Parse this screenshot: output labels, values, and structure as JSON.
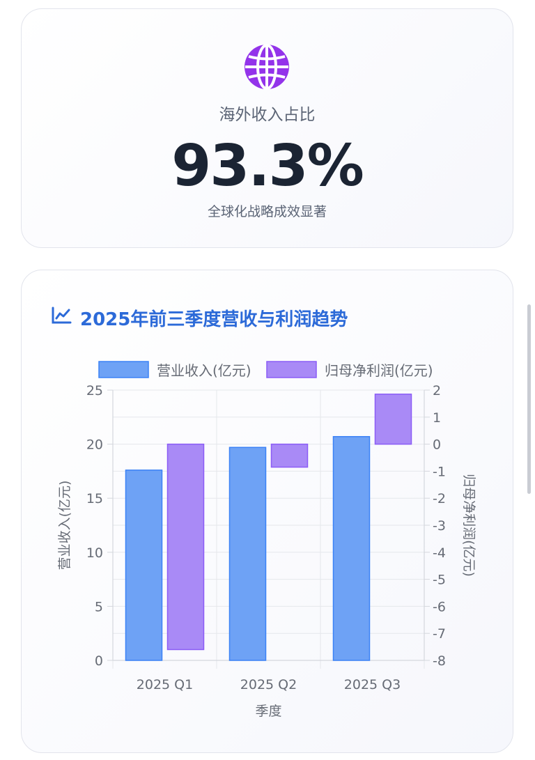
{
  "stat_card": {
    "icon": "globe-icon",
    "label": "海外收入占比",
    "value": "93.3%",
    "subtitle": "全球化战略成效显著",
    "icon_color": "#9333ea"
  },
  "chart_card": {
    "icon": "line-chart-icon",
    "title": "2025年前三季度营收与利润趋势",
    "title_color": "#2c6ad8"
  },
  "chart_data": {
    "type": "bar",
    "categories": [
      "2025 Q1",
      "2025 Q2",
      "2025 Q3"
    ],
    "series": [
      {
        "name": "营业收入(亿元)",
        "values": [
          17.6,
          19.7,
          20.7
        ],
        "axis": "left",
        "color": "#6ea2f5",
        "border": "#3b82f6"
      },
      {
        "name": "归母净利润(亿元)",
        "values": [
          -7.6,
          -0.85,
          1.85
        ],
        "axis": "right",
        "color": "#a98af6",
        "border": "#8b5cf6"
      }
    ],
    "xlabel": "季度",
    "ylabel": "营业收入(亿元)",
    "y2label": "归母净利润(亿元)",
    "ylim": [
      0,
      25
    ],
    "y2lim": [
      -8,
      2
    ],
    "yticks": [
      "0",
      "5",
      "10",
      "15",
      "20",
      "25"
    ],
    "y2ticks": [
      "-8",
      "-7",
      "-6",
      "-5",
      "-4",
      "-3",
      "-2",
      "-1",
      "0",
      "1",
      "2"
    ],
    "legend": "top",
    "grid": true
  }
}
